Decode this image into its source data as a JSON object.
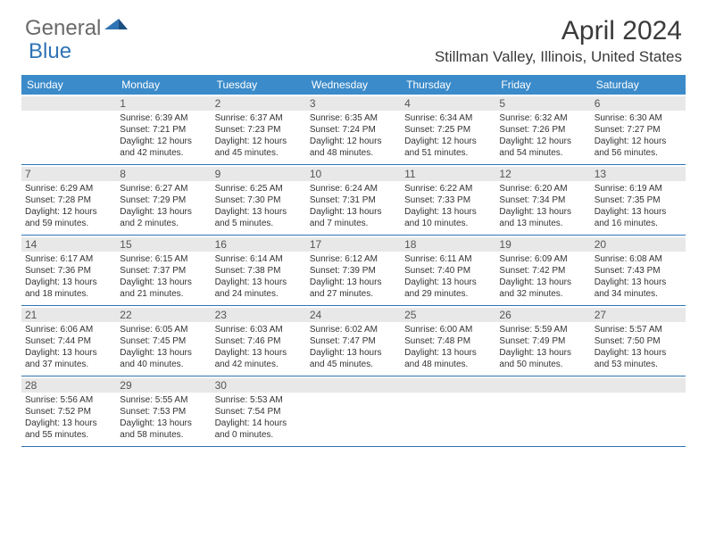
{
  "brand": {
    "part1": "General",
    "part2": "Blue"
  },
  "title": "April 2024",
  "location": "Stillman Valley, Illinois, United States",
  "columns": [
    "Sunday",
    "Monday",
    "Tuesday",
    "Wednesday",
    "Thursday",
    "Friday",
    "Saturday"
  ],
  "colors": {
    "header_bg": "#3b8bca",
    "header_text": "#ffffff",
    "daynum_bg": "#e8e8e8",
    "border": "#2f74b5",
    "brand_gray": "#6a6a6a",
    "brand_blue": "#2f74b5"
  },
  "weeks": [
    [
      null,
      {
        "n": "1",
        "sunrise": "6:39 AM",
        "sunset": "7:21 PM",
        "daylight": "12 hours and 42 minutes."
      },
      {
        "n": "2",
        "sunrise": "6:37 AM",
        "sunset": "7:23 PM",
        "daylight": "12 hours and 45 minutes."
      },
      {
        "n": "3",
        "sunrise": "6:35 AM",
        "sunset": "7:24 PM",
        "daylight": "12 hours and 48 minutes."
      },
      {
        "n": "4",
        "sunrise": "6:34 AM",
        "sunset": "7:25 PM",
        "daylight": "12 hours and 51 minutes."
      },
      {
        "n": "5",
        "sunrise": "6:32 AM",
        "sunset": "7:26 PM",
        "daylight": "12 hours and 54 minutes."
      },
      {
        "n": "6",
        "sunrise": "6:30 AM",
        "sunset": "7:27 PM",
        "daylight": "12 hours and 56 minutes."
      }
    ],
    [
      {
        "n": "7",
        "sunrise": "6:29 AM",
        "sunset": "7:28 PM",
        "daylight": "12 hours and 59 minutes."
      },
      {
        "n": "8",
        "sunrise": "6:27 AM",
        "sunset": "7:29 PM",
        "daylight": "13 hours and 2 minutes."
      },
      {
        "n": "9",
        "sunrise": "6:25 AM",
        "sunset": "7:30 PM",
        "daylight": "13 hours and 5 minutes."
      },
      {
        "n": "10",
        "sunrise": "6:24 AM",
        "sunset": "7:31 PM",
        "daylight": "13 hours and 7 minutes."
      },
      {
        "n": "11",
        "sunrise": "6:22 AM",
        "sunset": "7:33 PM",
        "daylight": "13 hours and 10 minutes."
      },
      {
        "n": "12",
        "sunrise": "6:20 AM",
        "sunset": "7:34 PM",
        "daylight": "13 hours and 13 minutes."
      },
      {
        "n": "13",
        "sunrise": "6:19 AM",
        "sunset": "7:35 PM",
        "daylight": "13 hours and 16 minutes."
      }
    ],
    [
      {
        "n": "14",
        "sunrise": "6:17 AM",
        "sunset": "7:36 PM",
        "daylight": "13 hours and 18 minutes."
      },
      {
        "n": "15",
        "sunrise": "6:15 AM",
        "sunset": "7:37 PM",
        "daylight": "13 hours and 21 minutes."
      },
      {
        "n": "16",
        "sunrise": "6:14 AM",
        "sunset": "7:38 PM",
        "daylight": "13 hours and 24 minutes."
      },
      {
        "n": "17",
        "sunrise": "6:12 AM",
        "sunset": "7:39 PM",
        "daylight": "13 hours and 27 minutes."
      },
      {
        "n": "18",
        "sunrise": "6:11 AM",
        "sunset": "7:40 PM",
        "daylight": "13 hours and 29 minutes."
      },
      {
        "n": "19",
        "sunrise": "6:09 AM",
        "sunset": "7:42 PM",
        "daylight": "13 hours and 32 minutes."
      },
      {
        "n": "20",
        "sunrise": "6:08 AM",
        "sunset": "7:43 PM",
        "daylight": "13 hours and 34 minutes."
      }
    ],
    [
      {
        "n": "21",
        "sunrise": "6:06 AM",
        "sunset": "7:44 PM",
        "daylight": "13 hours and 37 minutes."
      },
      {
        "n": "22",
        "sunrise": "6:05 AM",
        "sunset": "7:45 PM",
        "daylight": "13 hours and 40 minutes."
      },
      {
        "n": "23",
        "sunrise": "6:03 AM",
        "sunset": "7:46 PM",
        "daylight": "13 hours and 42 minutes."
      },
      {
        "n": "24",
        "sunrise": "6:02 AM",
        "sunset": "7:47 PM",
        "daylight": "13 hours and 45 minutes."
      },
      {
        "n": "25",
        "sunrise": "6:00 AM",
        "sunset": "7:48 PM",
        "daylight": "13 hours and 48 minutes."
      },
      {
        "n": "26",
        "sunrise": "5:59 AM",
        "sunset": "7:49 PM",
        "daylight": "13 hours and 50 minutes."
      },
      {
        "n": "27",
        "sunrise": "5:57 AM",
        "sunset": "7:50 PM",
        "daylight": "13 hours and 53 minutes."
      }
    ],
    [
      {
        "n": "28",
        "sunrise": "5:56 AM",
        "sunset": "7:52 PM",
        "daylight": "13 hours and 55 minutes."
      },
      {
        "n": "29",
        "sunrise": "5:55 AM",
        "sunset": "7:53 PM",
        "daylight": "13 hours and 58 minutes."
      },
      {
        "n": "30",
        "sunrise": "5:53 AM",
        "sunset": "7:54 PM",
        "daylight": "14 hours and 0 minutes."
      },
      null,
      null,
      null,
      null
    ]
  ]
}
